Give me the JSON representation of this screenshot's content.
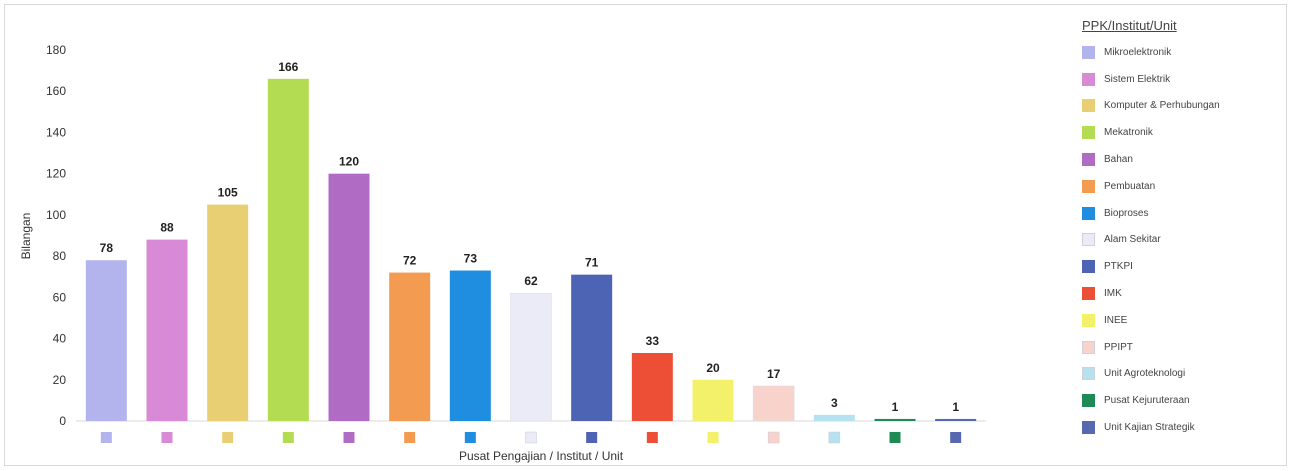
{
  "chart_data": {
    "type": "bar",
    "categories": [
      "Mikroelektronik",
      "Sistem Elektrik",
      "Komputer & Perhubungan",
      "Mekatronik",
      "Bahan",
      "Pembuatan",
      "Bioproses",
      "Alam Sekitar",
      "PTKPI",
      "IMK",
      "INEE",
      "PPIPT",
      "Unit Agroteknologi",
      "Pusat Kejuruteraan",
      "Unit Kajian Strategik"
    ],
    "values": [
      78,
      88,
      105,
      166,
      120,
      72,
      73,
      62,
      71,
      33,
      20,
      17,
      3,
      1,
      1
    ],
    "colors": [
      "#b3b3ee",
      "#d98ad6",
      "#e8cf73",
      "#b4dc52",
      "#b06cc4",
      "#f49b52",
      "#1f8ee0",
      "#ebebf7",
      "#4d63b3",
      "#ec4f35",
      "#f3f06a",
      "#f7d3cc",
      "#b5e2ee",
      "#1e8a55",
      "#5669b0"
    ],
    "title": "",
    "xlabel": "Pusat Pengajian / Institut / Unit",
    "ylabel": "Bilangan",
    "ylim": [
      0,
      180
    ],
    "yticks": [
      0,
      20,
      40,
      60,
      80,
      100,
      120,
      140,
      160,
      180
    ],
    "grid": false,
    "data_labels": true,
    "legend_title": "PPK/Institut/Unit",
    "legend_position": "right"
  }
}
